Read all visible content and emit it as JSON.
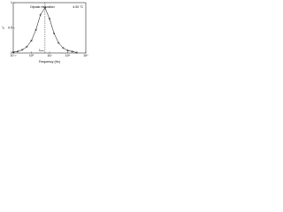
{
  "chart_data": {
    "type": "line",
    "title": "Dipolar relaxation",
    "subtitle": "4.00 °C",
    "x_label": "Frequency (Hz)",
    "y_label": "ε''",
    "x": [
      0.01,
      0.0316,
      0.1,
      0.316,
      1,
      3.16,
      10,
      31.6,
      100,
      316,
      1000,
      3162,
      10000,
      31623,
      100000
    ],
    "series": [
      {
        "name": "ε''",
        "color": "#000000",
        "values": [
          0.016,
          0.031,
          0.063,
          0.124,
          0.244,
          0.46,
          0.76,
          0.9,
          0.68,
          0.39,
          0.2,
          0.1,
          0.05,
          0.03,
          0.01
        ]
      }
    ],
    "xlim": [
      0.01,
      1000000
    ],
    "ylim": [
      0,
      1
    ],
    "log_x": true,
    "xticks": [
      {
        "value": 0.01,
        "label": "10⁻²"
      },
      {
        "value": 1,
        "label": "10⁰"
      },
      {
        "value": 100,
        "label": "10²"
      },
      {
        "value": 10000,
        "label": "10⁴"
      },
      {
        "value": 1000000,
        "label": "10⁶"
      }
    ],
    "yticks": [
      0,
      0.5,
      1
    ],
    "annotations": [
      {
        "text": "fₘₐₓ",
        "x": 31.6
      }
    ]
  }
}
